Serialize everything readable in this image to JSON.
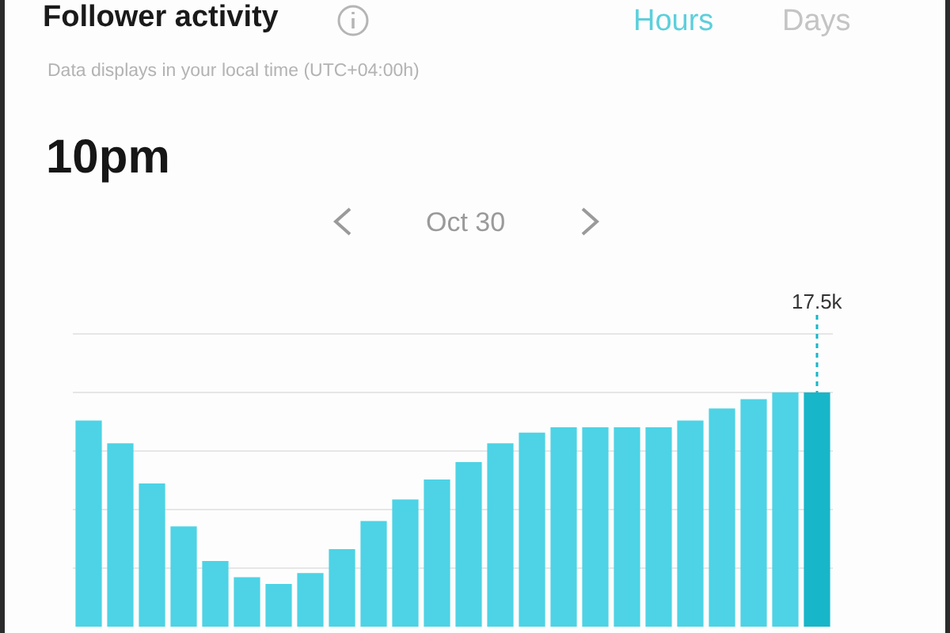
{
  "chart_data": {
    "type": "bar",
    "title": "Follower activity",
    "subtitle": "Data displays in your local time (UTC+04:00h)",
    "annotations": [
      "Hours",
      "Days",
      "10pm",
      "Oct 30"
    ],
    "categories": [
      null,
      null,
      null,
      null,
      null,
      null,
      null,
      null,
      null,
      null,
      null,
      null,
      null,
      null,
      null,
      null,
      null,
      null,
      null,
      null,
      null,
      null,
      null,
      null
    ],
    "values": [
      15400,
      13700,
      10700,
      7500,
      4900,
      3700,
      3200,
      4000,
      5800,
      7900,
      9500,
      11000,
      12300,
      13700,
      14500,
      14900,
      14900,
      14900,
      14900,
      15400,
      16300,
      17000,
      17500,
      17500
    ],
    "colors": [
      "#4dd3e5",
      "#4dd3e5",
      "#4dd3e5",
      "#4dd3e5",
      "#4dd3e5",
      "#4dd3e5",
      "#4dd3e5",
      "#4dd3e5",
      "#4dd3e5",
      "#4dd3e5",
      "#4dd3e5",
      "#4dd3e5",
      "#4dd3e5",
      "#4dd3e5",
      "#4dd3e5",
      "#4dd3e5",
      "#4dd3e5",
      "#4dd3e5",
      "#4dd3e5",
      "#4dd3e5",
      "#4dd3e5",
      "#4dd3e5",
      "#4dd3e5",
      "#17b6c8"
    ],
    "value_labels": [
      null,
      null,
      null,
      null,
      null,
      null,
      null,
      null,
      null,
      null,
      null,
      null,
      null,
      null,
      null,
      null,
      null,
      null,
      null,
      null,
      null,
      null,
      null,
      "17.5k"
    ],
    "yticks": [
      {
        "value": 4375,
        "label": null
      },
      {
        "value": 8750,
        "label": null
      },
      {
        "value": 13125,
        "label": null
      },
      {
        "value": 17500,
        "label": null
      },
      {
        "value": 21875,
        "label": null
      }
    ],
    "grid": "y",
    "legend": false
  }
}
